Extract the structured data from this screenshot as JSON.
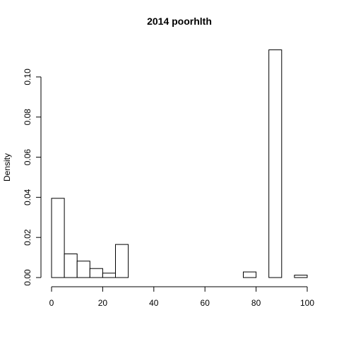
{
  "chart_data": {
    "type": "histogram",
    "title": "2014 poorhlth",
    "xlabel": "",
    "ylabel": "Density",
    "xlim": [
      0,
      100
    ],
    "ylim": [
      0,
      0.113
    ],
    "bin_width": 5,
    "bins": [
      {
        "start": 0,
        "end": 5,
        "density": 0.0395
      },
      {
        "start": 5,
        "end": 10,
        "density": 0.0118
      },
      {
        "start": 10,
        "end": 15,
        "density": 0.0082
      },
      {
        "start": 15,
        "end": 20,
        "density": 0.0045
      },
      {
        "start": 20,
        "end": 25,
        "density": 0.0022
      },
      {
        "start": 25,
        "end": 30,
        "density": 0.0165
      },
      {
        "start": 30,
        "end": 35,
        "density": 0
      },
      {
        "start": 35,
        "end": 40,
        "density": 0
      },
      {
        "start": 40,
        "end": 45,
        "density": 0
      },
      {
        "start": 45,
        "end": 50,
        "density": 0
      },
      {
        "start": 50,
        "end": 55,
        "density": 0
      },
      {
        "start": 55,
        "end": 60,
        "density": 0
      },
      {
        "start": 60,
        "end": 65,
        "density": 0
      },
      {
        "start": 65,
        "end": 70,
        "density": 0
      },
      {
        "start": 70,
        "end": 75,
        "density": 0
      },
      {
        "start": 75,
        "end": 80,
        "density": 0.0028
      },
      {
        "start": 80,
        "end": 85,
        "density": 0
      },
      {
        "start": 85,
        "end": 90,
        "density": 0.1135
      },
      {
        "start": 90,
        "end": 95,
        "density": 0
      },
      {
        "start": 95,
        "end": 100,
        "density": 0.0012
      }
    ],
    "x_ticks": [
      0,
      20,
      40,
      60,
      80,
      100
    ],
    "x_tick_labels": [
      "0",
      "20",
      "40",
      "60",
      "80",
      "100"
    ],
    "y_ticks": [
      0,
      0.02,
      0.04,
      0.06,
      0.08,
      0.1
    ],
    "y_tick_labels": [
      "0.00",
      "0.02",
      "0.04",
      "0.06",
      "0.08",
      "0.10"
    ],
    "grid": false,
    "legend": "none"
  }
}
